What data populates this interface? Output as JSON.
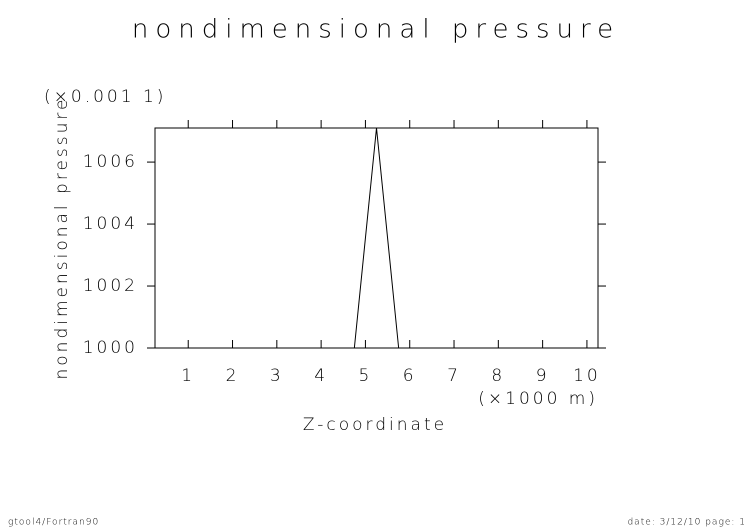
{
  "chart_data": {
    "type": "line",
    "title": "nondimensional pressure",
    "x_label": "Z-coordinate",
    "x_unit": "(×1000 m)",
    "y_label": "nondimensional pressure",
    "y_unit": "(×0.001 1)",
    "x": [
      0.25,
      0.75,
      1.25,
      1.75,
      2.25,
      2.75,
      3.25,
      3.75,
      4.25,
      4.75,
      5.25,
      5.75,
      6.25,
      6.75,
      7.25,
      7.75,
      8.25,
      8.75,
      9.25,
      9.75,
      10.25
    ],
    "series": [
      {
        "name": "nondimensional pressure",
        "color": "#000000",
        "values": [
          1000,
          1000,
          1000,
          1000,
          1000,
          1000,
          1000,
          1000,
          1000,
          1000,
          1007.1,
          1000,
          1000,
          1000,
          1000,
          1000,
          1000,
          1000,
          1000,
          1000,
          1000
        ]
      }
    ],
    "xlim": [
      0.25,
      10.25
    ],
    "xticks": [
      1,
      2,
      3,
      4,
      5,
      6,
      7,
      8,
      9,
      10
    ],
    "ylim": [
      1000,
      1007.1
    ],
    "yticks": [
      1000,
      1002,
      1004,
      1006
    ],
    "footer_left": "gtool4/Fortran90",
    "footer_right": "date: 3/12/10 page: 1"
  }
}
